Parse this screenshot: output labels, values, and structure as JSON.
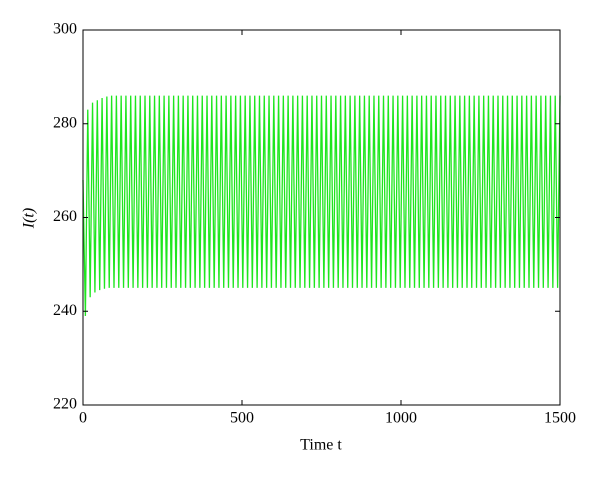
{
  "chart_data": {
    "type": "line",
    "x_label": "Time t",
    "y_label": "I(t)",
    "color": "#1ee61e",
    "xlim": [
      0,
      1500
    ],
    "xticks": [
      0,
      500,
      1000,
      1500
    ],
    "ylim": [
      220,
      300
    ],
    "yticks": [
      220,
      240,
      260,
      280,
      300
    ],
    "x": [
      0,
      7.5,
      15,
      22.5,
      30,
      37.5,
      45,
      52.5,
      60,
      67.5,
      75,
      82.5,
      90,
      97.5,
      105,
      112.5,
      120,
      127.5,
      135,
      142.5,
      150,
      157.5,
      165,
      172.5,
      180,
      187.5,
      195,
      202.5,
      210,
      217.5,
      225,
      232.5,
      240,
      247.5,
      255,
      262.5,
      270,
      277.5,
      285,
      292.5,
      300,
      307.5,
      315,
      322.5,
      330,
      337.5,
      345,
      352.5,
      360,
      367.5,
      375,
      382.5,
      390,
      397.5,
      405,
      412.5,
      420,
      427.5,
      435,
      442.5,
      450,
      457.5,
      465,
      472.5,
      480,
      487.5,
      495,
      502.5,
      510,
      517.5,
      525,
      532.5,
      540,
      547.5,
      555,
      562.5,
      570,
      577.5,
      585,
      592.5,
      600,
      607.5,
      615,
      622.5,
      630,
      637.5,
      645,
      652.5,
      660,
      667.5,
      675,
      682.5,
      690,
      697.5,
      705,
      712.5,
      720,
      727.5,
      735,
      742.5,
      750,
      757.5,
      765,
      772.5,
      780,
      787.5,
      795,
      802.5,
      810,
      817.5,
      825,
      832.5,
      840,
      847.5,
      855,
      862.5,
      870,
      877.5,
      885,
      892.5,
      900,
      907.5,
      915,
      922.5,
      930,
      937.5,
      945,
      952.5,
      960,
      967.5,
      975,
      982.5,
      990,
      997.5,
      1005,
      1012.5,
      1020,
      1027.5,
      1035,
      1042.5,
      1050,
      1057.5,
      1065,
      1072.5,
      1080,
      1087.5,
      1095,
      1102.5,
      1110,
      1117.5,
      1125,
      1132.5,
      1140,
      1147.5,
      1155,
      1162.5,
      1170,
      1177.5,
      1185,
      1192.5,
      1200,
      1207.5,
      1215,
      1222.5,
      1230,
      1237.5,
      1245,
      1252.5,
      1260,
      1267.5,
      1275,
      1282.5,
      1290,
      1297.5,
      1305,
      1312.5,
      1320,
      1327.5,
      1335,
      1342.5,
      1350,
      1357.5,
      1365,
      1372.5,
      1380,
      1387.5,
      1395,
      1402.5,
      1410,
      1417.5,
      1425,
      1432.5,
      1440,
      1447.5,
      1455,
      1462.5,
      1470,
      1477.5,
      1485,
      1492.5,
      1500
    ],
    "values": [
      268,
      239,
      283,
      243,
      284.5,
      244,
      285,
      244.5,
      285.5,
      244.8,
      285.8,
      245,
      286,
      245,
      286,
      245,
      286,
      245,
      286,
      245,
      286,
      245,
      286,
      245,
      286,
      245,
      286,
      245,
      286,
      245,
      286,
      245,
      286,
      245,
      286,
      245,
      286,
      245,
      286,
      245,
      286,
      245,
      286,
      245,
      286,
      245,
      286,
      245,
      286,
      245,
      286,
      245,
      286,
      245,
      286,
      245,
      286,
      245,
      286,
      245,
      286,
      245,
      286,
      245,
      286,
      245,
      286,
      245,
      286,
      245,
      286,
      245,
      286,
      245,
      286,
      245,
      286,
      245,
      286,
      245,
      286,
      245,
      286,
      245,
      286,
      245,
      286,
      245,
      286,
      245,
      286,
      245,
      286,
      245,
      286,
      245,
      286,
      245,
      286,
      245,
      286,
      245,
      286,
      245,
      286,
      245,
      286,
      245,
      286,
      245,
      286,
      245,
      286,
      245,
      286,
      245,
      286,
      245,
      286,
      245,
      286,
      245,
      286,
      245,
      286,
      245,
      286,
      245,
      286,
      245,
      286,
      245,
      286,
      245,
      286,
      245,
      286,
      245,
      286,
      245,
      286,
      245,
      286,
      245,
      286,
      245,
      286,
      245,
      286,
      245,
      286,
      245,
      286,
      245,
      286,
      245,
      286,
      245,
      286,
      245,
      286,
      245,
      286,
      245,
      286,
      245,
      286,
      245,
      286,
      245,
      286,
      245,
      286,
      245,
      286,
      245,
      286,
      245,
      286,
      245,
      286,
      245,
      286,
      245,
      286,
      245,
      286,
      245,
      286,
      245,
      286,
      245,
      286,
      245,
      286,
      245,
      286,
      245,
      286,
      245,
      286
    ]
  }
}
